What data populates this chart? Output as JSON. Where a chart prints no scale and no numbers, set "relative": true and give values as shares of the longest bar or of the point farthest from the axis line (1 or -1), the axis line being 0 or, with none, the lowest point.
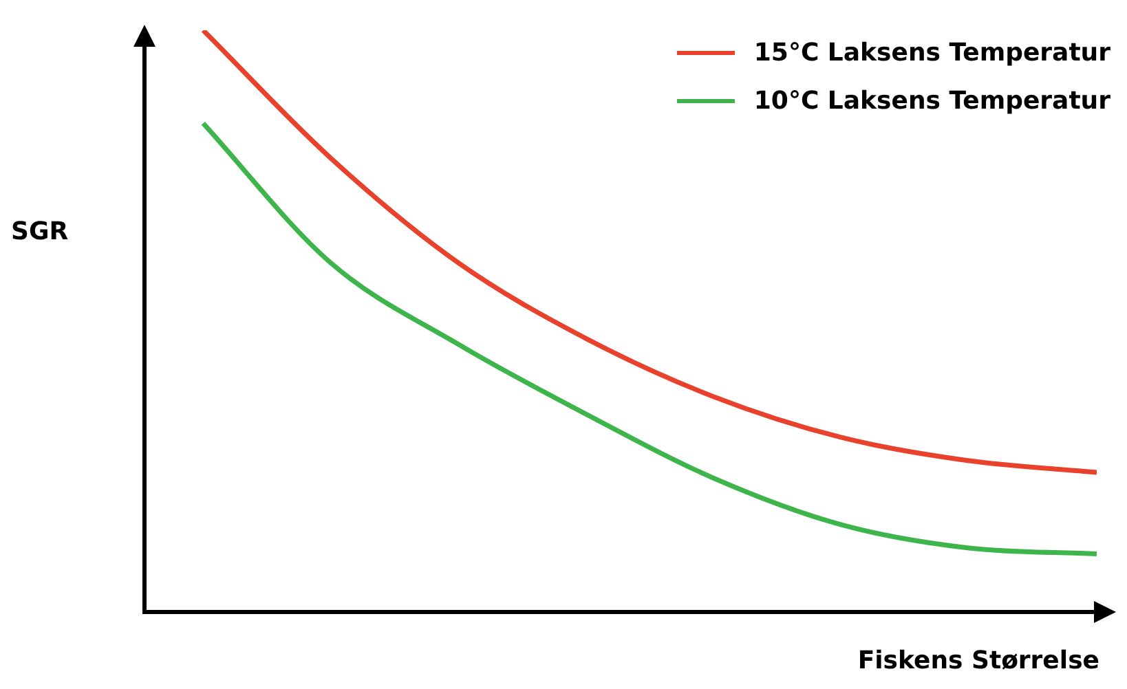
{
  "chart_data": {
    "type": "line",
    "relative": true,
    "xlabel": "Fiskens Størrelse",
    "ylabel": "SGR",
    "categories": [
      null,
      null,
      null,
      null,
      null,
      null,
      null,
      null
    ],
    "series": [
      {
        "name": "15°C Laksens Temperatur",
        "color": "#e8412c",
        "values": [
          1,
          0.78,
          0.6,
          0.47,
          0.37,
          0.3,
          0.26,
          0.24
        ]
      },
      {
        "name": "10°C Laksens Temperatur",
        "color": "#3db54a",
        "values": [
          0.84,
          0.6,
          0.46,
          0.34,
          0.23,
          0.15,
          0.11,
          0.1
        ]
      }
    ],
    "legend": "top right",
    "marker": "none",
    "line_style": "solid"
  }
}
